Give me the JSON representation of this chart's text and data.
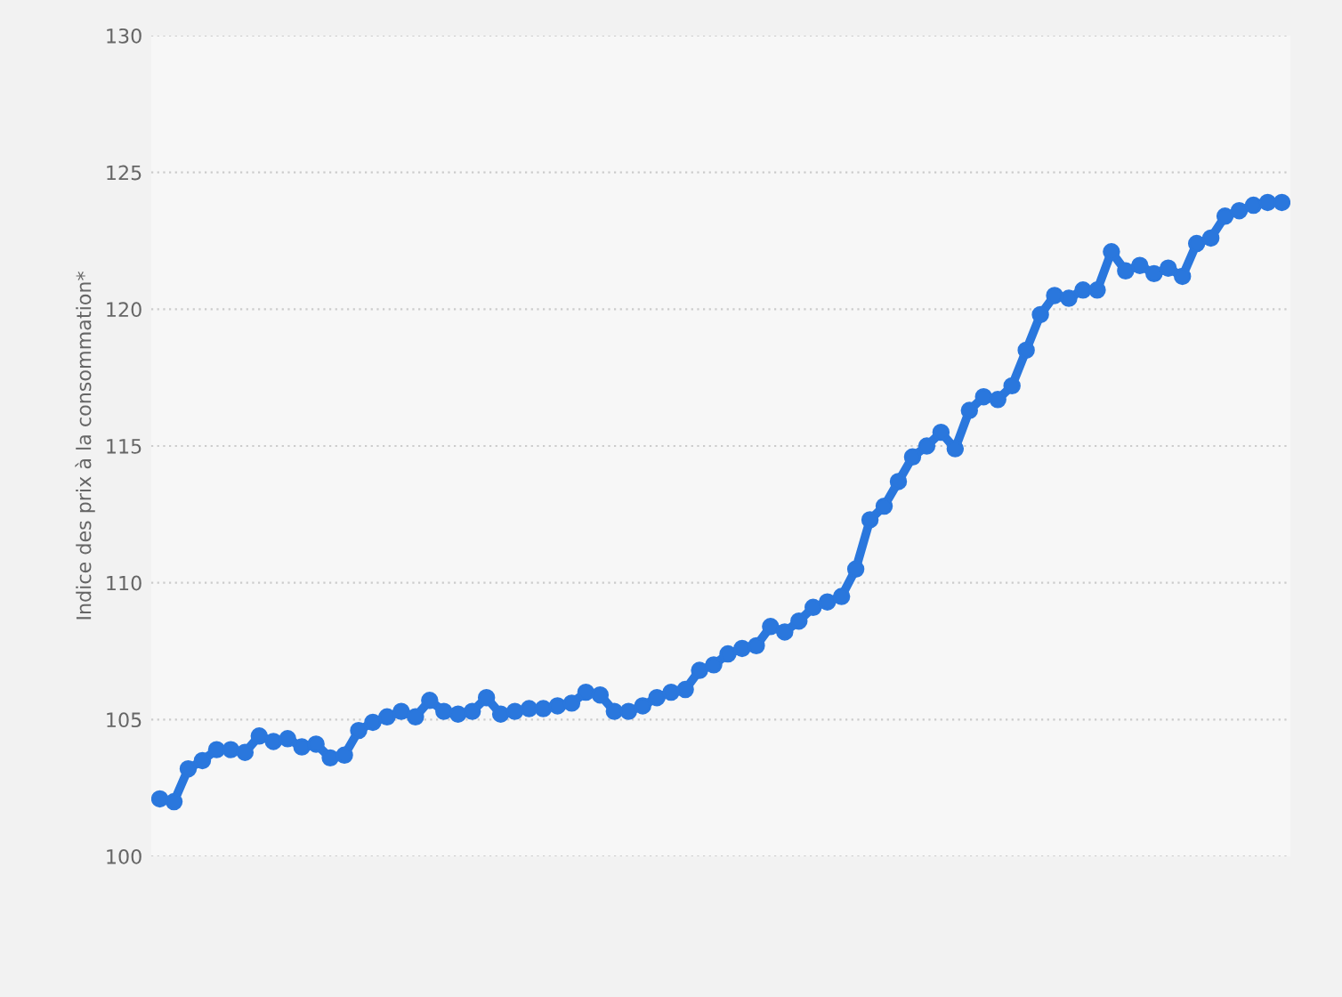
{
  "chart_data": {
    "type": "line",
    "ylabel": "Indice des prix à la consommation*",
    "categories": [
      null,
      null,
      null,
      null,
      null,
      null,
      null,
      null,
      null,
      null,
      null,
      null,
      null,
      null,
      null,
      null,
      null,
      null,
      null,
      null,
      null,
      null,
      null,
      null,
      null,
      null,
      null,
      null,
      null,
      null,
      null,
      null,
      null,
      null,
      null,
      null,
      null,
      null,
      null,
      null,
      null,
      null,
      null,
      null,
      null,
      null,
      null,
      null,
      null,
      null,
      null,
      null,
      null,
      null,
      null,
      null,
      null,
      null,
      null,
      null,
      null,
      null,
      null,
      null,
      null,
      null,
      null,
      null,
      null,
      null,
      null,
      null,
      null,
      null,
      null,
      null,
      null,
      null,
      null,
      null
    ],
    "series": [
      {
        "color": "#2a77dd",
        "values": [
          102.1,
          102.0,
          103.2,
          103.5,
          103.9,
          103.9,
          103.8,
          104.4,
          104.2,
          104.3,
          104.0,
          104.1,
          103.6,
          103.7,
          104.6,
          104.9,
          105.1,
          105.3,
          105.1,
          105.7,
          105.3,
          105.2,
          105.3,
          105.8,
          105.2,
          105.3,
          105.4,
          105.4,
          105.5,
          105.6,
          106.0,
          105.9,
          105.3,
          105.3,
          105.5,
          105.8,
          106.0,
          106.1,
          106.8,
          107.0,
          107.4,
          107.6,
          107.7,
          108.4,
          108.2,
          108.6,
          109.1,
          109.3,
          109.5,
          110.5,
          112.3,
          112.8,
          113.7,
          114.6,
          115.0,
          115.5,
          114.9,
          116.3,
          116.8,
          116.7,
          117.2,
          118.5,
          119.8,
          120.5,
          120.4,
          120.7,
          120.7,
          122.1,
          121.4,
          121.6,
          121.3,
          121.5,
          121.2,
          122.4,
          122.6,
          123.4,
          123.6,
          123.8,
          123.9,
          123.9
        ]
      }
    ],
    "ylim": [
      100,
      130
    ],
    "yticks": [
      100,
      105,
      110,
      115,
      120,
      125,
      130
    ],
    "grid": "y",
    "marker": "circle",
    "line_style": "solid",
    "tick_labels": "y"
  }
}
